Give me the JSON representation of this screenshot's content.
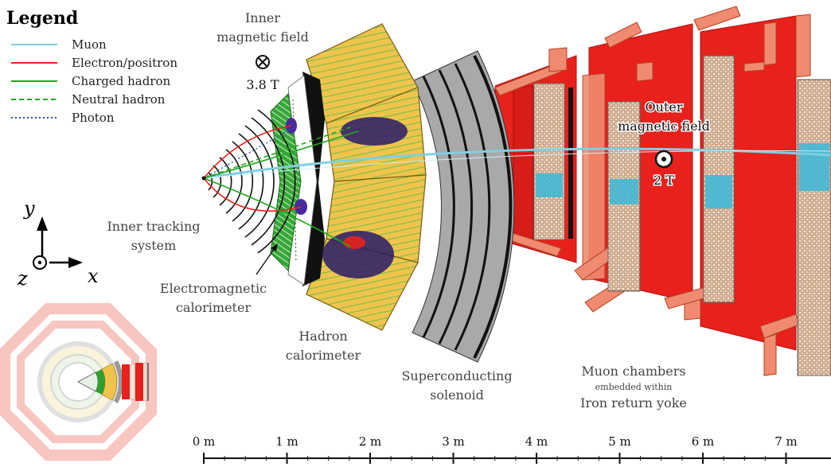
{
  "legend": {
    "title": "Legend",
    "items": [
      {
        "label": "Muon",
        "color": "#7fcfe3",
        "style": "solid"
      },
      {
        "label": "Electron/positron",
        "color": "#e8211c",
        "style": "solid"
      },
      {
        "label": "Charged hadron",
        "color": "#1fa81f",
        "style": "solid"
      },
      {
        "label": "Neutral hadron",
        "color": "#1fa81f",
        "style": "dashed"
      },
      {
        "label": "Photon",
        "color": "#2255aa",
        "style": "dotted"
      }
    ]
  },
  "labels": {
    "inner_field_1": "Inner",
    "inner_field_2": "magnetic field",
    "inner_field_value": "3.8 T",
    "outer_field_1": "Outer",
    "outer_field_2": "magnetic field",
    "outer_field_value": "2 T",
    "tracker_1": "Inner tracking",
    "tracker_2": "system",
    "ecal_1": "Electromagnetic",
    "ecal_2": "calorimeter",
    "hcal_1": "Hadron",
    "hcal_2": "calorimeter",
    "solenoid_1": "Superconducting",
    "solenoid_2": "solenoid",
    "muon_1": "Muon chambers",
    "muon_2": "embedded within",
    "muon_3": "Iron return yoke"
  },
  "axes": {
    "y": "y",
    "x": "x",
    "z": "z"
  },
  "scale": {
    "ticks": [
      "0 m",
      "1 m",
      "2 m",
      "3 m",
      "4 m",
      "5 m",
      "6 m",
      "7 m"
    ]
  },
  "colors": {
    "yoke": "#e8211c",
    "yoke_outline": "#f08a70",
    "hcal": "#f0c44c",
    "ecal": "#2ea02e",
    "solenoid": "#a9a9a9",
    "muon_chamber": "#f2ead8",
    "muon_hit": "#3ab8d8",
    "deposit": "#2a1a6a"
  }
}
